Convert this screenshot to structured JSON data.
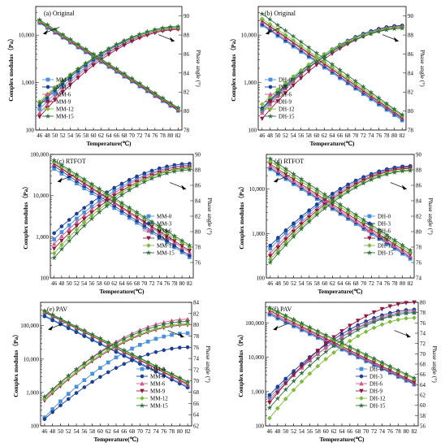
{
  "chart_data": [
    {
      "type": "line",
      "title": "(a) Original",
      "xlabel": "Temperature(℃)",
      "ylabel_left": "Complex modulus（Pa）",
      "ylabel_right": "Phase angle (°)",
      "x": [
        46,
        48,
        50,
        52,
        54,
        56,
        58,
        60,
        62,
        64,
        66,
        68,
        70,
        72,
        74,
        76,
        78,
        80,
        82
      ],
      "left_axis": {
        "scale": "log",
        "min": 100,
        "max": 40000,
        "ticks": [
          100,
          1000,
          10000
        ],
        "tick_labels": [
          "100",
          "1,000",
          "10,000"
        ]
      },
      "right_axis": {
        "scale": "linear",
        "min": 78,
        "max": 91,
        "ticks": [
          78,
          80,
          82,
          84,
          86,
          88,
          90
        ],
        "tick_labels": [
          "78",
          "80",
          "82",
          "84",
          "86",
          "88",
          "90"
        ]
      },
      "legend": {
        "position": "center-left",
        "entries": [
          "MM-0",
          "MM-3",
          "MM-6",
          "MM-9",
          "MM-12",
          "MM-15"
        ]
      },
      "series": [
        {
          "name": "MM-0",
          "color": "#4a90d9",
          "marker": "square",
          "modulus": [
            18000,
            255
          ],
          "phase": [
            80.2,
            88.7
          ]
        },
        {
          "name": "MM-3",
          "color": "#1c3f94",
          "marker": "circle",
          "modulus": [
            18500,
            260
          ],
          "phase": [
            80.6,
            88.8
          ]
        },
        {
          "name": "MM-6",
          "color": "#d05a8c",
          "marker": "triangle",
          "modulus": [
            19000,
            268
          ],
          "phase": [
            79.8,
            88.7
          ]
        },
        {
          "name": "MM-9",
          "color": "#8b1a3c",
          "marker": "triangle-down",
          "modulus": [
            19500,
            275
          ],
          "phase": [
            79.4,
            88.6
          ]
        },
        {
          "name": "MM-12",
          "color": "#7dbb3c",
          "marker": "diamond",
          "modulus": [
            20000,
            285
          ],
          "phase": [
            81.0,
            88.8
          ]
        },
        {
          "name": "MM-15",
          "color": "#2f6e3c",
          "marker": "star",
          "modulus": [
            21000,
            295
          ],
          "phase": [
            80.8,
            88.9
          ]
        }
      ]
    },
    {
      "type": "line",
      "title": "(b) Original",
      "xlabel": "Temperature(℃)",
      "ylabel_left": "Complex modulus（Pa）",
      "ylabel_right": "Phase angle (°)",
      "x": [
        46,
        48,
        50,
        52,
        54,
        56,
        58,
        60,
        62,
        64,
        66,
        68,
        70,
        72,
        74,
        76,
        78,
        80,
        82
      ],
      "left_axis": {
        "scale": "log",
        "min": 100,
        "max": 40000,
        "ticks": [
          100,
          1000,
          10000
        ],
        "tick_labels": [
          "100",
          "1,000",
          "10,000"
        ]
      },
      "right_axis": {
        "scale": "linear",
        "min": 78,
        "max": 91,
        "ticks": [
          78,
          80,
          82,
          84,
          86,
          88,
          90
        ],
        "tick_labels": [
          "78",
          "80",
          "82",
          "84",
          "86",
          "88",
          "90"
        ]
      },
      "legend": {
        "position": "center-left",
        "entries": [
          "DH-0",
          "DH-3",
          "DH-6",
          "DH-9",
          "DH-12",
          "DH-15"
        ]
      },
      "series": [
        {
          "name": "DH-0",
          "color": "#4a90d9",
          "marker": "square",
          "modulus": [
            16000,
            160
          ],
          "phase": [
            80.0,
            88.9
          ]
        },
        {
          "name": "DH-3",
          "color": "#1c3f94",
          "marker": "circle",
          "modulus": [
            17000,
            170
          ],
          "phase": [
            80.3,
            89.0
          ]
        },
        {
          "name": "DH-6",
          "color": "#d05a8c",
          "marker": "triangle",
          "modulus": [
            19000,
            180
          ],
          "phase": [
            79.8,
            88.9
          ]
        },
        {
          "name": "DH-9",
          "color": "#8b1a3c",
          "marker": "triangle-down",
          "modulus": [
            20000,
            185
          ],
          "phase": [
            79.2,
            88.8
          ]
        },
        {
          "name": "DH-12",
          "color": "#7dbb3c",
          "marker": "diamond",
          "modulus": [
            22000,
            200
          ],
          "phase": [
            80.7,
            88.8
          ]
        },
        {
          "name": "DH-15",
          "color": "#2f6e3c",
          "marker": "star",
          "modulus": [
            28000,
            210
          ],
          "phase": [
            80.2,
            88.7
          ]
        }
      ]
    },
    {
      "type": "line",
      "title": "(c) RTFOT",
      "xlabel": "Temperature(℃)",
      "ylabel_left": "Complex modulus（Pa）",
      "ylabel_right": "Phase angle (°)",
      "x": [
        46,
        48,
        50,
        52,
        54,
        56,
        58,
        60,
        62,
        64,
        66,
        68,
        70,
        72,
        74,
        76,
        78,
        80,
        82
      ],
      "left_axis": {
        "scale": "log",
        "min": 100,
        "max": 100000,
        "ticks": [
          100,
          1000,
          10000,
          100000
        ],
        "tick_labels": [
          "100",
          "1,000",
          "10,000",
          "100,000"
        ]
      },
      "right_axis": {
        "scale": "linear",
        "min": 74,
        "max": 90,
        "ticks": [
          76,
          78,
          80,
          82,
          84,
          86,
          88,
          90
        ],
        "tick_labels": [
          "76",
          "78",
          "80",
          "82",
          "84",
          "86",
          "88",
          "90"
        ]
      },
      "legend": {
        "position": "center-right",
        "entries": [
          "MM-0",
          "MM-3",
          "MM-6",
          "MM-9",
          "MM-12",
          "MM-15"
        ]
      },
      "series": [
        {
          "name": "MM-0",
          "color": "#4a90d9",
          "marker": "square",
          "modulus": [
            45000,
            320
          ],
          "phase": [
            79.0,
            88.6
          ]
        },
        {
          "name": "MM-3",
          "color": "#1c3f94",
          "marker": "circle",
          "modulus": [
            52000,
            350
          ],
          "phase": [
            79.8,
            88.8
          ]
        },
        {
          "name": "MM-6",
          "color": "#d05a8c",
          "marker": "triangle",
          "modulus": [
            58000,
            420
          ],
          "phase": [
            78.4,
            88.5
          ]
        },
        {
          "name": "MM-9",
          "color": "#8b1a3c",
          "marker": "triangle-down",
          "modulus": [
            60000,
            460
          ],
          "phase": [
            77.8,
            88.3
          ]
        },
        {
          "name": "MM-12",
          "color": "#7dbb3c",
          "marker": "diamond",
          "modulus": [
            66000,
            560
          ],
          "phase": [
            77.2,
            88.2
          ]
        },
        {
          "name": "MM-15",
          "color": "#2f6e3c",
          "marker": "star",
          "modulus": [
            72000,
            620
          ],
          "phase": [
            76.6,
            88.0
          ]
        }
      ]
    },
    {
      "type": "line",
      "title": "(d) RTFOT",
      "xlabel": "Temperature(℃)",
      "ylabel_left": "Complex modulus（Pa）",
      "ylabel_right": "Phase angle (°)",
      "x": [
        46,
        48,
        50,
        52,
        54,
        56,
        58,
        60,
        62,
        64,
        66,
        68,
        70,
        72,
        74,
        76,
        78,
        80,
        82
      ],
      "left_axis": {
        "scale": "log",
        "min": 100,
        "max": 60000,
        "ticks": [
          100,
          1000,
          10000
        ],
        "tick_labels": [
          "100",
          "1,000",
          "10,000"
        ]
      },
      "right_axis": {
        "scale": "linear",
        "min": 74,
        "max": 90,
        "ticks": [
          74,
          76,
          78,
          80,
          82,
          84,
          86,
          88,
          90
        ],
        "tick_labels": [
          "74",
          "76",
          "78",
          "80",
          "82",
          "84",
          "86",
          "88",
          "90"
        ]
      },
      "legend": {
        "position": "center-right",
        "entries": [
          "DH-0",
          "DH-3",
          "DH-6",
          "DH-9",
          "DH-12",
          "DH-15"
        ]
      },
      "series": [
        {
          "name": "DH-0",
          "color": "#4a90d9",
          "marker": "square",
          "modulus": [
            28000,
            270
          ],
          "phase": [
            77.8,
            88.4
          ]
        },
        {
          "name": "DH-3",
          "color": "#1c3f94",
          "marker": "circle",
          "modulus": [
            30000,
            290
          ],
          "phase": [
            78.2,
            88.5
          ]
        },
        {
          "name": "DH-6",
          "color": "#d05a8c",
          "marker": "triangle",
          "modulus": [
            33000,
            310
          ],
          "phase": [
            77.2,
            88.3
          ]
        },
        {
          "name": "DH-9",
          "color": "#8b1a3c",
          "marker": "triangle-down",
          "modulus": [
            36000,
            340
          ],
          "phase": [
            76.8,
            88.2
          ]
        },
        {
          "name": "DH-12",
          "color": "#7dbb3c",
          "marker": "diamond",
          "modulus": [
            42000,
            380
          ],
          "phase": [
            76.4,
            88.0
          ]
        },
        {
          "name": "DH-15",
          "color": "#2f6e3c",
          "marker": "star",
          "modulus": [
            48000,
            420
          ],
          "phase": [
            76.0,
            87.9
          ]
        }
      ]
    },
    {
      "type": "line",
      "title": "(e) PAV",
      "xlabel": "Temperature(℃)",
      "ylabel_left": "Complex modulus（Pa）",
      "ylabel_right": "Phase angle (°)",
      "x": [
        46,
        48,
        50,
        52,
        54,
        56,
        58,
        60,
        62,
        64,
        66,
        68,
        70,
        72,
        74,
        76,
        78,
        80,
        82
      ],
      "left_axis": {
        "scale": "log",
        "min": 100,
        "max": 500000,
        "ticks": [
          100,
          1000,
          10000,
          100000
        ],
        "tick_labels": [
          "100",
          "1,000",
          "10,000",
          "100,000"
        ]
      },
      "right_axis": {
        "scale": "linear",
        "min": 62,
        "max": 84,
        "ticks": [
          62,
          64,
          66,
          68,
          70,
          72,
          74,
          76,
          78,
          80,
          82,
          84
        ],
        "tick_labels": [
          "62",
          "64",
          "66",
          "68",
          "70",
          "72",
          "74",
          "76",
          "78",
          "80",
          "82",
          "84"
        ]
      },
      "legend": {
        "position": "bottom-right",
        "entries": [
          "MM-0",
          "MM-3",
          "MM-6",
          "MM-9",
          "MM-12",
          "MM-15"
        ]
      },
      "series": [
        {
          "name": "MM-0",
          "color": "#4a90d9",
          "marker": "square",
          "modulus": [
            200000,
            1500
          ],
          "phase": [
            63.5,
            78.5
          ]
        },
        {
          "name": "MM-3",
          "color": "#1c3f94",
          "marker": "circle",
          "modulus": [
            190000,
            1400
          ],
          "phase": [
            63.2,
            76.0
          ]
        },
        {
          "name": "MM-6",
          "color": "#d05a8c",
          "marker": "triangle",
          "modulus": [
            260000,
            1700
          ],
          "phase": [
            67.0,
            81.0
          ]
        },
        {
          "name": "MM-9",
          "color": "#8b1a3c",
          "marker": "triangle-down",
          "modulus": [
            250000,
            1800
          ],
          "phase": [
            66.5,
            80.0
          ]
        },
        {
          "name": "MM-12",
          "color": "#7dbb3c",
          "marker": "diamond",
          "modulus": [
            270000,
            2000
          ],
          "phase": [
            66.8,
            80.2
          ]
        },
        {
          "name": "MM-15",
          "color": "#2f6e3c",
          "marker": "star",
          "modulus": [
            280000,
            2100
          ],
          "phase": [
            67.2,
            80.6
          ]
        }
      ]
    },
    {
      "type": "line",
      "title": "(f) PAV",
      "xlabel": "Temperature(℃)",
      "ylabel_left": "Complex modulus（Pa）",
      "ylabel_right": "Phase angle (°)",
      "x": [
        46,
        48,
        50,
        52,
        54,
        56,
        58,
        60,
        62,
        64,
        66,
        68,
        70,
        72,
        74,
        76,
        78,
        80,
        82
      ],
      "left_axis": {
        "scale": "log",
        "min": 100,
        "max": 400000,
        "ticks": [
          100,
          1000,
          10000,
          100000
        ],
        "tick_labels": [
          "100",
          "1,000",
          "10,000",
          "100,000"
        ]
      },
      "right_axis": {
        "scale": "linear",
        "min": 56,
        "max": 80,
        "ticks": [
          56,
          58,
          60,
          62,
          64,
          66,
          68,
          70,
          72,
          74,
          76,
          78,
          80
        ],
        "tick_labels": [
          "56",
          "58",
          "60",
          "62",
          "64",
          "66",
          "68",
          "70",
          "72",
          "74",
          "76",
          "78",
          "80"
        ]
      },
      "legend": {
        "position": "bottom-right",
        "entries": [
          "DH-0",
          "DH-3",
          "DH-6",
          "DH-9",
          "DH-12",
          "DH-15"
        ]
      },
      "series": [
        {
          "name": "DH-0",
          "color": "#4a90d9",
          "marker": "square",
          "modulus": [
            175000,
            1600
          ],
          "phase": [
            61.5,
            78.0
          ]
        },
        {
          "name": "DH-3",
          "color": "#1c3f94",
          "marker": "circle",
          "modulus": [
            190000,
            1700
          ],
          "phase": [
            62.0,
            78.6
          ]
        },
        {
          "name": "DH-6",
          "color": "#d05a8c",
          "marker": "triangle",
          "modulus": [
            210000,
            1800
          ],
          "phase": [
            61.0,
            78.3
          ]
        },
        {
          "name": "DH-9",
          "color": "#8b1a3c",
          "marker": "triangle-down",
          "modulus": [
            230000,
            1900
          ],
          "phase": [
            60.5,
            80.0
          ]
        },
        {
          "name": "DH-12",
          "color": "#7dbb3c",
          "marker": "diamond",
          "modulus": [
            260000,
            2300
          ],
          "phase": [
            57.5,
            77.0
          ]
        },
        {
          "name": "DH-15",
          "color": "#2f6e3c",
          "marker": "star",
          "modulus": [
            280000,
            2500
          ],
          "phase": [
            59.5,
            78.0
          ]
        }
      ]
    }
  ]
}
